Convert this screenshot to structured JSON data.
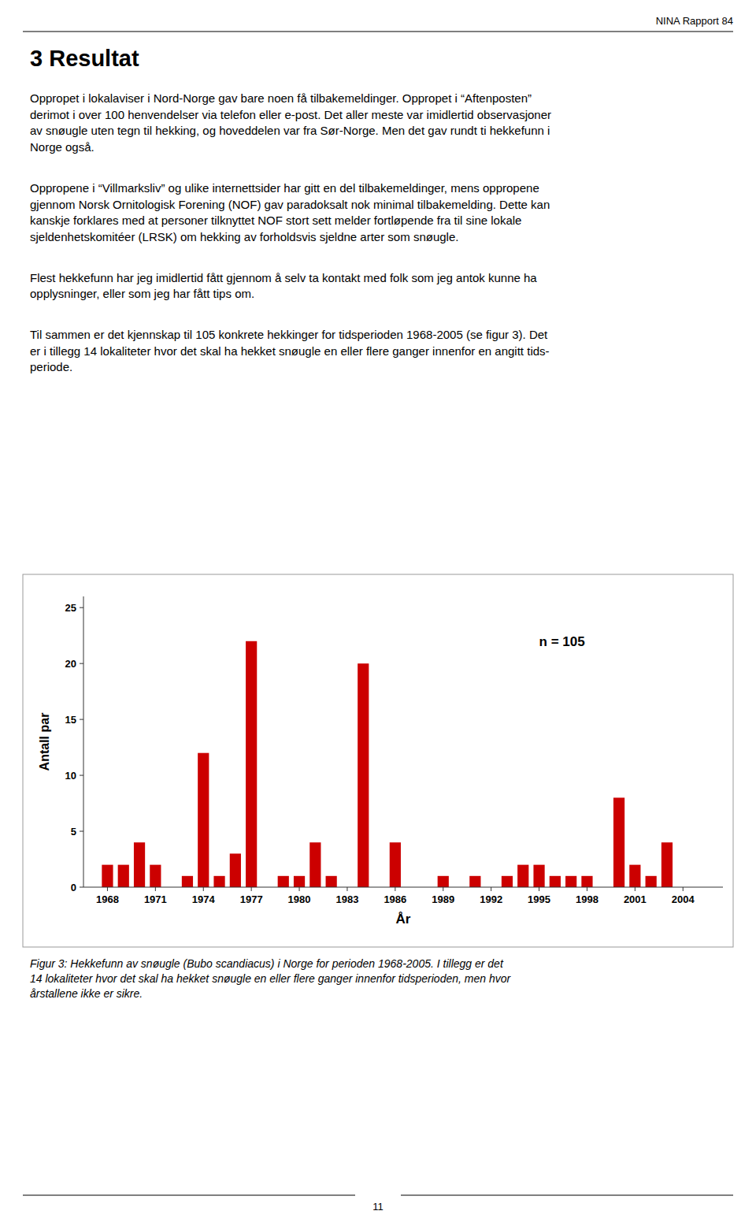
{
  "page": {
    "header": "NINA Rapport  84",
    "title": "3  Resultat",
    "paragraphs": [
      [
        "Oppropet i lokalaviser i Nord-Norge gav bare noen få tilbakemeldinger. Oppropet i “Aftenposten”",
        "derimot i over 100 henvendelser via telefon eller e-post. Det aller meste var imidlertid observasjoner",
        "av snøugle uten tegn til hekking, og hoveddelen var fra Sør-Norge. Men det gav rundt ti hekkefunn i",
        "Norge også."
      ],
      [
        "Oppropene i “Villmarksliv” og ulike internettsider har gitt en del tilbakemeldinger, mens oppropene",
        "gjennom Norsk Ornitologisk Forening (NOF) gav paradoksalt nok minimal tilbakemelding. Dette kan",
        "kanskje forklares med at personer tilknyttet NOF stort sett melder fortløpende fra til sine lokale",
        "sjeldenhetskomitéer (LRSK) om hekking av forholdsvis sjeldne arter som snøugle."
      ],
      [
        "Flest hekkefunn har jeg imidlertid fått gjennom å selv ta kontakt med folk som jeg antok kunne ha",
        "opplysninger, eller som jeg har fått tips om."
      ],
      [
        "Til sammen er det kjennskap til 105 konkrete hekkinger for tidsperioden 1968-2005 (se figur 3). Det",
        "er i tillegg 14 lokaliteter hvor det skal ha hekket snøugle en eller flere ganger innenfor en angitt tids-",
        "periode."
      ]
    ],
    "caption": [
      "Figur 3: Hekkefunn av snøugle (Bubo scandiacus) i Norge for perioden 1968-2005. I tillegg er det",
      "14 lokaliteter hvor det skal ha hekket snøugle en eller flere ganger innenfor tidsperioden, men hvor",
      "årstallene ikke er sikre."
    ],
    "page_number": "11"
  },
  "chart_data": {
    "type": "bar",
    "x": [
      1968,
      1969,
      1970,
      1971,
      1972,
      1973,
      1974,
      1975,
      1976,
      1977,
      1978,
      1979,
      1980,
      1981,
      1982,
      1983,
      1984,
      1985,
      1986,
      1987,
      1988,
      1989,
      1990,
      1991,
      1992,
      1993,
      1994,
      1995,
      1996,
      1997,
      1998,
      1999,
      2000,
      2001,
      2002,
      2003,
      2004,
      2005
    ],
    "values": [
      2,
      2,
      4,
      2,
      0,
      1,
      12,
      1,
      3,
      22,
      0,
      1,
      1,
      4,
      1,
      0,
      20,
      0,
      4,
      0,
      0,
      1,
      0,
      1,
      0,
      1,
      2,
      2,
      1,
      1,
      1,
      0,
      8,
      2,
      1,
      4,
      0,
      0
    ],
    "color": "#cc0000",
    "xlabel": "År",
    "ylabel": "Antall par",
    "xlim": [
      1966.5,
      2006.5
    ],
    "xticks": [
      1968,
      1971,
      1974,
      1977,
      1980,
      1983,
      1986,
      1989,
      1992,
      1995,
      1998,
      2001,
      2004
    ],
    "ylim": [
      0,
      26
    ],
    "yticks": [
      0,
      5,
      10,
      15,
      20,
      25
    ],
    "grid": false,
    "annotations": [
      {
        "text": "n = 105",
        "x": 1995,
        "y": 22
      }
    ]
  }
}
